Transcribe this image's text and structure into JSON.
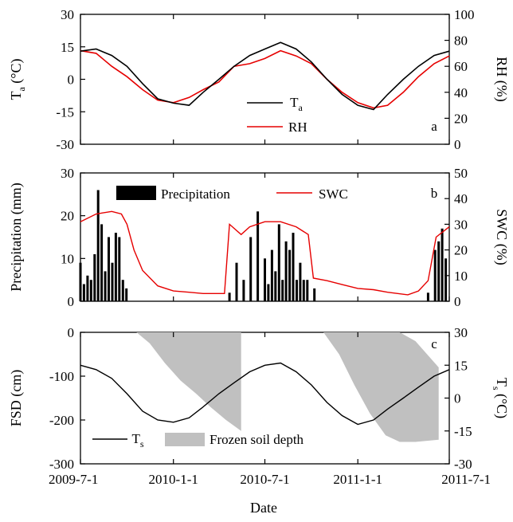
{
  "chart_data": [
    {
      "type": "line",
      "panel_label": "a",
      "x_domain": [
        "2009-7-1",
        "2011-7-1"
      ],
      "y_left": {
        "label_main": "T",
        "label_sub": "a",
        "label_unit": " (°C)",
        "ylim": [
          -30,
          30
        ],
        "ticks": [
          "-30",
          "-15",
          "0",
          "15",
          "30"
        ]
      },
      "y_right": {
        "label": "RH (%)",
        "ylim": [
          0,
          100
        ],
        "ticks": [
          "0",
          "20",
          "40",
          "60",
          "80",
          "100"
        ]
      },
      "legend_placement": "bottom-center",
      "series": [
        {
          "name_main": "T",
          "name_sub": "a",
          "color": "#000000",
          "axis": "left",
          "x": [
            "2009-7-1",
            "2009-8-1",
            "2009-9-1",
            "2009-10-1",
            "2009-11-1",
            "2009-12-1",
            "2010-1-1",
            "2010-2-1",
            "2010-3-1",
            "2010-4-1",
            "2010-5-1",
            "2010-6-1",
            "2010-7-1",
            "2010-8-1",
            "2010-9-1",
            "2010-10-1",
            "2010-11-1",
            "2010-12-1",
            "2011-1-1",
            "2011-2-1",
            "2011-3-1",
            "2011-4-1",
            "2011-5-1",
            "2011-6-1",
            "2011-7-1"
          ],
          "y": [
            13,
            14,
            11,
            6,
            -2,
            -9,
            -11,
            -12,
            -6,
            0,
            6,
            11,
            14,
            17,
            14,
            8,
            0,
            -7,
            -12,
            -14,
            -7,
            0,
            6,
            11,
            13
          ]
        },
        {
          "name": "RH",
          "color": "#e60000",
          "axis": "right",
          "x": [
            "2009-7-1",
            "2009-8-1",
            "2009-9-1",
            "2009-10-1",
            "2009-11-1",
            "2009-12-1",
            "2010-1-1",
            "2010-2-1",
            "2010-3-1",
            "2010-4-1",
            "2010-5-1",
            "2010-6-1",
            "2010-7-1",
            "2010-8-1",
            "2010-9-1",
            "2010-10-1",
            "2010-11-1",
            "2010-12-1",
            "2011-1-1",
            "2011-2-1",
            "2011-3-1",
            "2011-4-1",
            "2011-5-1",
            "2011-6-1",
            "2011-7-1"
          ],
          "y": [
            72,
            70,
            60,
            52,
            42,
            34,
            32,
            36,
            42,
            48,
            60,
            62,
            66,
            72,
            68,
            62,
            50,
            40,
            32,
            28,
            30,
            40,
            52,
            62,
            68
          ]
        }
      ]
    },
    {
      "type": "bar+line",
      "panel_label": "b",
      "x_domain": [
        "2009-7-1",
        "2011-7-1"
      ],
      "y_left": {
        "label": "Precipitation (mm)",
        "ylim": [
          0,
          30
        ],
        "ticks": [
          "0",
          "10",
          "20",
          "30"
        ]
      },
      "y_right": {
        "label": "SWC (%)",
        "ylim": [
          0,
          50
        ],
        "ticks": [
          "0",
          "10",
          "20",
          "30",
          "40",
          "50"
        ]
      },
      "legend_placement": "top",
      "series": [
        {
          "name": "Precipitation",
          "color": "#000000",
          "axis": "left",
          "kind": "bar",
          "x": [
            "2009-7-1",
            "2009-7-8",
            "2009-7-15",
            "2009-7-22",
            "2009-7-29",
            "2009-8-5",
            "2009-8-12",
            "2009-8-19",
            "2009-8-26",
            "2009-9-2",
            "2009-9-9",
            "2009-9-16",
            "2009-9-23",
            "2009-9-30",
            "2010-4-22",
            "2010-5-6",
            "2010-5-20",
            "2010-6-3",
            "2010-6-17",
            "2010-7-1",
            "2010-7-8",
            "2010-7-15",
            "2010-7-22",
            "2010-7-29",
            "2010-8-5",
            "2010-8-12",
            "2010-8-19",
            "2010-8-26",
            "2010-9-2",
            "2010-9-9",
            "2010-9-16",
            "2010-9-23",
            "2010-10-7",
            "2011-5-20",
            "2011-6-3",
            "2011-6-10",
            "2011-6-17",
            "2011-6-24"
          ],
          "y": [
            9,
            4,
            6,
            5,
            11,
            26,
            18,
            7,
            15,
            9,
            16,
            15,
            5,
            3,
            2,
            9,
            5,
            15,
            21,
            10,
            4,
            12,
            7,
            18,
            5,
            14,
            12,
            16,
            5,
            9,
            5,
            5,
            3,
            2,
            12,
            14,
            17,
            10
          ]
        },
        {
          "name": "SWC",
          "color": "#e60000",
          "axis": "right",
          "kind": "line",
          "x": [
            "2009-7-1",
            "2009-8-1",
            "2009-9-1",
            "2009-9-20",
            "2009-10-1",
            "2009-10-15",
            "2009-11-1",
            "2009-12-1",
            "2010-1-1",
            "2010-2-1",
            "2010-3-1",
            "2010-4-12",
            "2010-4-22",
            "2010-5-15",
            "2010-6-1",
            "2010-7-1",
            "2010-8-1",
            "2010-9-1",
            "2010-9-25",
            "2010-10-5",
            "2010-11-1",
            "2010-12-1",
            "2011-1-1",
            "2011-2-1",
            "2011-3-1",
            "2011-4-10",
            "2011-5-1",
            "2011-5-20",
            "2011-6-5",
            "2011-7-1"
          ],
          "y": [
            31,
            34,
            35,
            34,
            30,
            20,
            12,
            6,
            4,
            3.5,
            3,
            3,
            30,
            26,
            29,
            31,
            31,
            29,
            26,
            9,
            8,
            6.5,
            5,
            4.5,
            3.5,
            2.5,
            4,
            8,
            25,
            29
          ]
        }
      ]
    },
    {
      "type": "area+line",
      "panel_label": "c",
      "x_domain": [
        "2009-7-1",
        "2011-7-1"
      ],
      "y_left": {
        "label": "FSD (cm)",
        "ylim": [
          -300,
          0
        ],
        "ticks": [
          "-300",
          "-200",
          "-100",
          "0"
        ]
      },
      "y_right": {
        "label_main": "T",
        "label_sub": "s",
        "label_unit": " (°C)",
        "ylim": [
          -30,
          30
        ],
        "ticks": [
          "-30",
          "-15",
          "0",
          "15",
          "30"
        ]
      },
      "legend_placement": "bottom",
      "series": [
        {
          "name_main": "T",
          "name_sub": "s",
          "color": "#000000",
          "axis": "right",
          "kind": "line",
          "x": [
            "2009-7-1",
            "2009-8-1",
            "2009-9-1",
            "2009-10-1",
            "2009-11-1",
            "2009-12-1",
            "2010-1-1",
            "2010-2-1",
            "2010-3-1",
            "2010-4-1",
            "2010-5-1",
            "2010-6-1",
            "2010-7-1",
            "2010-8-1",
            "2010-9-1",
            "2010-10-1",
            "2010-11-1",
            "2010-12-1",
            "2011-1-1",
            "2011-2-1",
            "2011-3-1",
            "2011-4-1",
            "2011-5-1",
            "2011-6-1",
            "2011-7-1"
          ],
          "y": [
            15,
            13,
            9,
            2,
            -6,
            -10,
            -11,
            -9,
            -4,
            2,
            7,
            12,
            15,
            16,
            12,
            6,
            -2,
            -8,
            -12,
            -10,
            -5,
            0,
            5,
            10,
            13
          ]
        },
        {
          "name": "Frozen soil depth",
          "color": "#c0c0c0",
          "axis": "left",
          "kind": "area",
          "x": [
            "2009-10-20",
            "2009-11-15",
            "2009-12-15",
            "2010-1-15",
            "2010-2-15",
            "2010-3-15",
            "2010-4-15",
            "2010-5-15",
            "2010-5-15",
            "2010-4-15",
            "2010-3-15",
            "2010-2-15",
            "2010-1-15",
            "2009-12-15",
            "2009-11-15",
            "2009-10-20"
          ],
          "y": [
            0,
            0,
            0,
            0,
            0,
            0,
            0,
            0,
            -225,
            -200,
            -170,
            -140,
            -110,
            -70,
            -25,
            0
          ],
          "second_season": {
            "x": [
              "2010-10-25",
              "2010-11-25",
              "2010-12-25",
              "2011-1-25",
              "2011-2-25",
              "2011-3-25",
              "2011-4-25",
              "2011-6-10",
              "2011-6-10",
              "2011-4-25",
              "2011-3-25",
              "2011-2-25",
              "2011-1-25",
              "2010-12-25",
              "2010-11-25",
              "2010-10-25"
            ],
            "y": [
              0,
              0,
              0,
              0,
              0,
              0,
              -20,
              -80,
              -245,
              -250,
              -250,
              -235,
              -185,
              -120,
              -50,
              0
            ]
          }
        }
      ]
    }
  ],
  "x_ticks": [
    "2009-7-1",
    "2010-1-1",
    "2010-7-1",
    "2011-1-1",
    "2011-7-1"
  ],
  "x_label": "Date"
}
